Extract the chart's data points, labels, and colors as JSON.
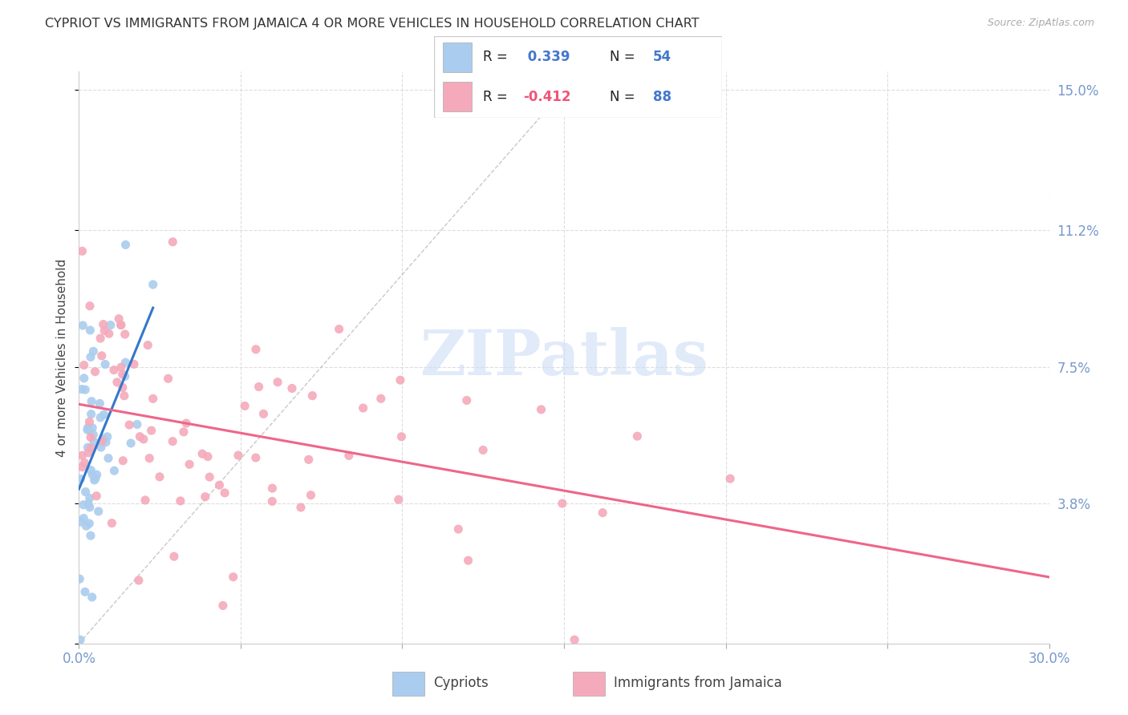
{
  "title": "CYPRIOT VS IMMIGRANTS FROM JAMAICA 4 OR MORE VEHICLES IN HOUSEHOLD CORRELATION CHART",
  "source": "Source: ZipAtlas.com",
  "ylabel": "4 or more Vehicles in Household",
  "x_min": 0.0,
  "x_max": 0.3,
  "y_min": 0.0,
  "y_max": 0.155,
  "cypriot_color": "#aaccee",
  "jamaica_color": "#f4aabb",
  "cypriot_line_color": "#3377cc",
  "jamaica_line_color": "#ee6688",
  "dashed_line_color": "#bbbbbb",
  "grid_color": "#dddddd",
  "tick_color": "#7799cc",
  "legend_blue": "#4477cc",
  "legend_pink": "#ee5577",
  "watermark_color": "#ccddf5",
  "n_cypriot": 54,
  "n_jamaica": 88,
  "R_cypriot": 0.339,
  "R_jamaica": -0.412
}
